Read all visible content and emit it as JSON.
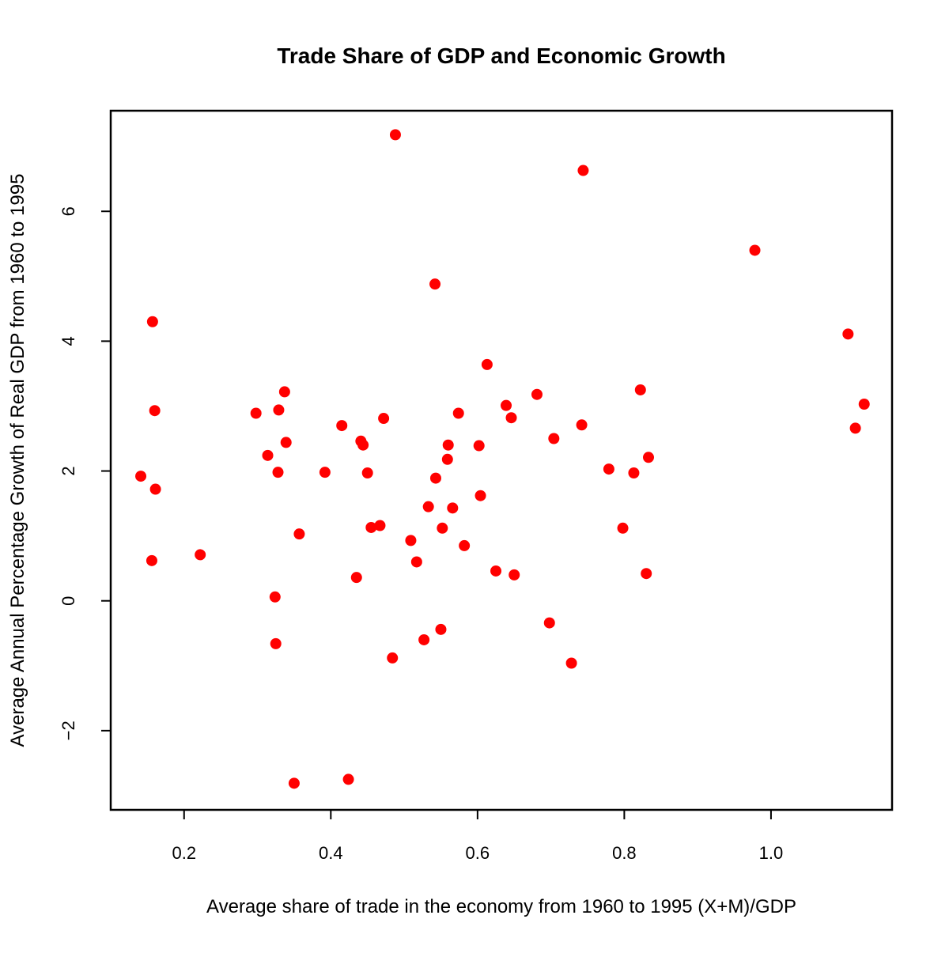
{
  "chart_data": {
    "type": "scatter",
    "title": "Trade Share of GDP and Economic Growth",
    "xlabel": "Average share of trade in the economy from 1960 to 1995 (X+M)/GDP",
    "ylabel": "Average Annual Percentage Growth of Real GDP from 1960 to 1995",
    "xlim": [
      0.1,
      1.165
    ],
    "ylim": [
      -3.22,
      7.55
    ],
    "xticks": [
      0.2,
      0.4,
      0.6,
      0.8,
      1.0
    ],
    "xtick_labels": [
      "0.2",
      "0.4",
      "0.6",
      "0.8",
      "1.0"
    ],
    "yticks": [
      -2,
      0,
      2,
      4,
      6
    ],
    "ytick_labels": [
      "−2",
      "0",
      "2",
      "4",
      "6"
    ],
    "grid": false,
    "marker_color": "#ff0000",
    "points": [
      {
        "x": 0.141,
        "y": 1.92
      },
      {
        "x": 0.156,
        "y": 0.62
      },
      {
        "x": 0.157,
        "y": 4.3
      },
      {
        "x": 0.16,
        "y": 2.93
      },
      {
        "x": 0.161,
        "y": 1.72
      },
      {
        "x": 0.222,
        "y": 0.71
      },
      {
        "x": 0.298,
        "y": 2.89
      },
      {
        "x": 0.314,
        "y": 2.24
      },
      {
        "x": 0.324,
        "y": 0.06
      },
      {
        "x": 0.325,
        "y": -0.66
      },
      {
        "x": 0.328,
        "y": 1.98
      },
      {
        "x": 0.329,
        "y": 2.94
      },
      {
        "x": 0.337,
        "y": 3.22
      },
      {
        "x": 0.339,
        "y": 2.44
      },
      {
        "x": 0.35,
        "y": -2.81
      },
      {
        "x": 0.357,
        "y": 1.03
      },
      {
        "x": 0.392,
        "y": 1.98
      },
      {
        "x": 0.415,
        "y": 2.7
      },
      {
        "x": 0.424,
        "y": -2.75
      },
      {
        "x": 0.435,
        "y": 0.36
      },
      {
        "x": 0.441,
        "y": 2.46
      },
      {
        "x": 0.444,
        "y": 2.4
      },
      {
        "x": 0.45,
        "y": 1.97
      },
      {
        "x": 0.455,
        "y": 1.13
      },
      {
        "x": 0.467,
        "y": 1.16
      },
      {
        "x": 0.472,
        "y": 2.81
      },
      {
        "x": 0.484,
        "y": -0.88
      },
      {
        "x": 0.488,
        "y": 7.18
      },
      {
        "x": 0.509,
        "y": 0.93
      },
      {
        "x": 0.517,
        "y": 0.6
      },
      {
        "x": 0.527,
        "y": -0.6
      },
      {
        "x": 0.533,
        "y": 1.45
      },
      {
        "x": 0.542,
        "y": 4.88
      },
      {
        "x": 0.543,
        "y": 1.89
      },
      {
        "x": 0.55,
        "y": -0.44
      },
      {
        "x": 0.552,
        "y": 1.12
      },
      {
        "x": 0.559,
        "y": 2.18
      },
      {
        "x": 0.56,
        "y": 2.4
      },
      {
        "x": 0.566,
        "y": 1.43
      },
      {
        "x": 0.574,
        "y": 2.89
      },
      {
        "x": 0.582,
        "y": 0.85
      },
      {
        "x": 0.602,
        "y": 2.39
      },
      {
        "x": 0.604,
        "y": 1.62
      },
      {
        "x": 0.613,
        "y": 3.64
      },
      {
        "x": 0.625,
        "y": 0.46
      },
      {
        "x": 0.639,
        "y": 3.01
      },
      {
        "x": 0.646,
        "y": 2.82
      },
      {
        "x": 0.65,
        "y": 0.4
      },
      {
        "x": 0.681,
        "y": 3.18
      },
      {
        "x": 0.698,
        "y": -0.34
      },
      {
        "x": 0.704,
        "y": 2.5
      },
      {
        "x": 0.728,
        "y": -0.96
      },
      {
        "x": 0.742,
        "y": 2.71
      },
      {
        "x": 0.744,
        "y": 6.63
      },
      {
        "x": 0.779,
        "y": 2.03
      },
      {
        "x": 0.798,
        "y": 1.12
      },
      {
        "x": 0.813,
        "y": 1.97
      },
      {
        "x": 0.822,
        "y": 3.25
      },
      {
        "x": 0.83,
        "y": 0.42
      },
      {
        "x": 0.833,
        "y": 2.21
      },
      {
        "x": 0.978,
        "y": 5.4
      },
      {
        "x": 1.105,
        "y": 4.11
      },
      {
        "x": 1.115,
        "y": 2.66
      },
      {
        "x": 1.127,
        "y": 3.03
      }
    ]
  }
}
